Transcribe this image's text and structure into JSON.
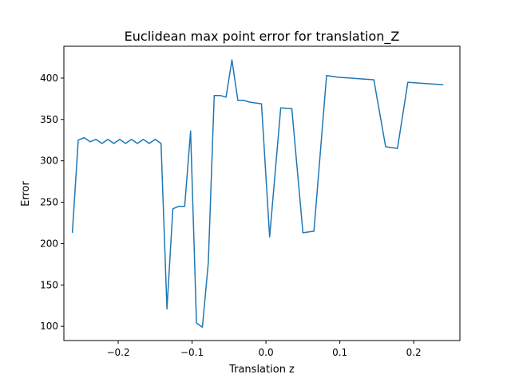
{
  "chart_data": {
    "type": "line",
    "title": "Euclidean max point error for translation_Z",
    "xlabel": "Translation z",
    "ylabel": "Error",
    "xlim": [
      -0.2735,
      0.2625
    ],
    "ylim": [
      82.8,
      438.5
    ],
    "x_ticks": [
      -0.2,
      -0.1,
      0.0,
      0.1,
      0.2
    ],
    "x_tick_labels": [
      "−0.2",
      "−0.1",
      "0.0",
      "0.1",
      "0.2"
    ],
    "y_ticks": [
      100,
      150,
      200,
      250,
      300,
      350,
      400
    ],
    "y_tick_labels": [
      "100",
      "150",
      "200",
      "250",
      "300",
      "350",
      "400"
    ],
    "grid": false,
    "line_color": "#1f77b4",
    "series": [
      {
        "name": "",
        "x": [
          -0.262,
          -0.254,
          -0.246,
          -0.238,
          -0.23,
          -0.222,
          -0.214,
          -0.206,
          -0.198,
          -0.19,
          -0.182,
          -0.174,
          -0.166,
          -0.158,
          -0.15,
          -0.142,
          -0.134,
          -0.126,
          -0.118,
          -0.11,
          -0.102,
          -0.094,
          -0.086,
          -0.078,
          -0.07,
          -0.062,
          -0.054,
          -0.046,
          -0.038,
          -0.03,
          -0.022,
          -0.014,
          -0.006,
          0.005,
          0.02,
          0.035,
          0.05,
          0.065,
          0.082,
          0.098,
          0.114,
          0.13,
          0.146,
          0.162,
          0.178,
          0.192,
          0.208,
          0.224,
          0.24
        ],
        "y": [
          213,
          325,
          328,
          323,
          326,
          321,
          326,
          321,
          326,
          321,
          326,
          321,
          326,
          321,
          326,
          321,
          121,
          242,
          245,
          245,
          336,
          104,
          99,
          177,
          379,
          379,
          377,
          422,
          373,
          373,
          371,
          370,
          369,
          208,
          364,
          363,
          213,
          215,
          403,
          401,
          400,
          399,
          398,
          317,
          315,
          395,
          394,
          393,
          392
        ]
      }
    ]
  }
}
